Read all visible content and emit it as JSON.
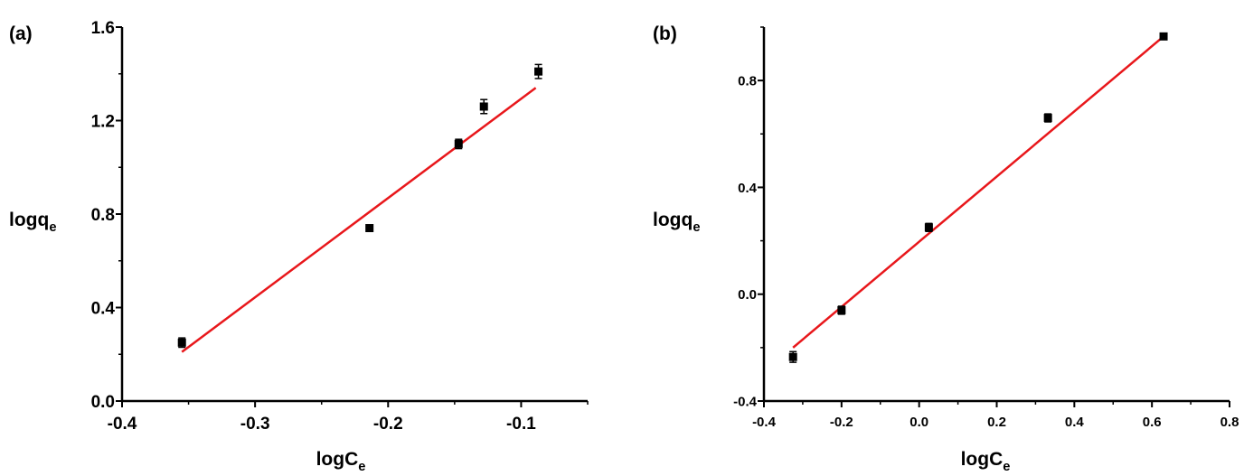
{
  "chart_data": [
    {
      "type": "scatter",
      "panel_label": "(a)",
      "xlabel": "logC",
      "xlabel_sub": "e",
      "ylabel": "logq",
      "ylabel_sub": "e",
      "xlim": [
        -0.4,
        -0.05
      ],
      "ylim": [
        0.0,
        1.6
      ],
      "x_ticks": [
        -0.4,
        -0.3,
        -0.2,
        -0.1
      ],
      "x_tick_labels": [
        "-0.4",
        "-0.3",
        "-0.2",
        "-0.1"
      ],
      "y_ticks": [
        0.0,
        0.4,
        0.8,
        1.2,
        1.6
      ],
      "y_tick_labels": [
        "0.0",
        "0.4",
        "0.8",
        "1.2",
        "1.6"
      ],
      "grid": false,
      "series": [
        {
          "points": [
            {
              "x": -0.355,
              "y": 0.25,
              "err": 0.02
            },
            {
              "x": -0.214,
              "y": 0.74,
              "err": 0.01
            },
            {
              "x": -0.147,
              "y": 1.1,
              "err": 0.02
            },
            {
              "x": -0.128,
              "y": 1.26,
              "err": 0.03
            },
            {
              "x": -0.087,
              "y": 1.41,
              "err": 0.03
            }
          ],
          "marker_color": "#000000"
        }
      ],
      "fit_line": {
        "x": [
          -0.355,
          -0.089
        ],
        "y": [
          0.21,
          1.34
        ],
        "color": "#e8171b"
      }
    },
    {
      "type": "scatter",
      "panel_label": "(b)",
      "xlabel": "logC",
      "xlabel_sub": "e",
      "ylabel": "logq",
      "ylabel_sub": "e",
      "xlim": [
        -0.4,
        0.8
      ],
      "ylim": [
        -0.4,
        1.0
      ],
      "x_ticks": [
        -0.4,
        -0.2,
        0.0,
        0.2,
        0.4,
        0.6,
        0.8
      ],
      "x_tick_labels": [
        "-0.4",
        "-0.2",
        "0.0",
        "0.2",
        "0.4",
        "0.6",
        "0.8"
      ],
      "y_ticks": [
        -0.4,
        0.0,
        0.4,
        0.8
      ],
      "y_tick_labels": [
        "-0.4",
        "0.0",
        "0.4",
        "0.8"
      ],
      "grid": false,
      "series": [
        {
          "points": [
            {
              "x": -0.325,
              "y": -0.235,
              "err": 0.02
            },
            {
              "x": -0.2,
              "y": -0.06,
              "err": 0.015
            },
            {
              "x": 0.025,
              "y": 0.25,
              "err": 0.015
            },
            {
              "x": 0.332,
              "y": 0.66,
              "err": 0.015
            },
            {
              "x": 0.63,
              "y": 0.965,
              "err": 0.005
            }
          ],
          "marker_color": "#000000"
        }
      ],
      "fit_line": {
        "x": [
          -0.325,
          0.63
        ],
        "y": [
          -0.2,
          0.965
        ],
        "color": "#e8171b"
      }
    }
  ]
}
